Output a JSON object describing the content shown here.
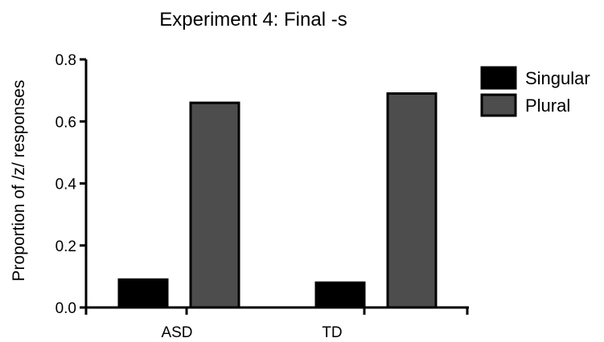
{
  "chart_data": {
    "type": "bar",
    "title": "Experiment 4: Final -s",
    "xlabel": "",
    "ylabel": "Proportion of /z/ responses",
    "ylim": [
      0,
      0.8
    ],
    "yticks": [
      "0.0",
      "0.2",
      "0.4",
      "0.6",
      "0.8"
    ],
    "categories": [
      "ASD",
      "TD"
    ],
    "series": [
      {
        "name": "Singular",
        "color": "#000000",
        "values": [
          0.09,
          0.08
        ]
      },
      {
        "name": "Plural",
        "color": "#4d4d4d",
        "values": [
          0.66,
          0.69
        ]
      }
    ],
    "legend_position": "top-right",
    "grid": false
  }
}
